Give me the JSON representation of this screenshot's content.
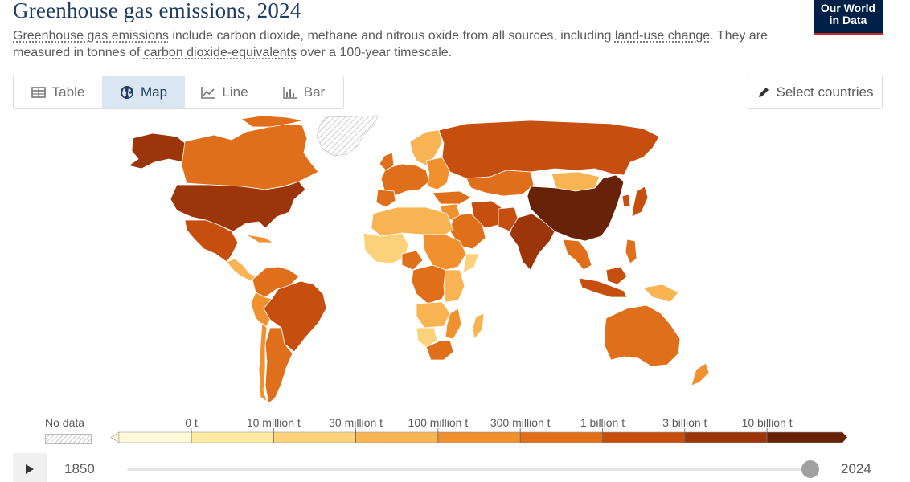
{
  "header": {
    "title": "Greenhouse gas emissions, 2024",
    "subtitle_parts": [
      "Greenhouse gas emissions",
      " include carbon dioxide, methane and nitrous oxide from all sources, including ",
      "land-use change",
      ". They are measured in tonnes of ",
      "carbon dioxide-equivalents",
      " over a 100-year timescale."
    ],
    "logo_line1": "Our World",
    "logo_line2": "in Data"
  },
  "tabs": [
    {
      "label": "Table",
      "icon": "table-icon",
      "selected": false
    },
    {
      "label": "Map",
      "icon": "globe-icon",
      "selected": true
    },
    {
      "label": "Line",
      "icon": "line-chart-icon",
      "selected": false
    },
    {
      "label": "Bar",
      "icon": "bar-chart-icon",
      "selected": false
    }
  ],
  "select_countries": {
    "label": "Select countries",
    "icon": "pencil-icon"
  },
  "legend": {
    "no_data_label": "No data",
    "bins": [
      "0 t",
      "10 million t",
      "30 million t",
      "100 million t",
      "300 million t",
      "1 billion t",
      "3 billion t",
      "10 billion t"
    ],
    "colors": [
      "#fff8d9",
      "#fde9a2",
      "#fbd27a",
      "#f8b353",
      "#f0902f",
      "#e06f1b",
      "#c64f0f",
      "#9c3509",
      "#672207"
    ]
  },
  "timeline": {
    "start_year": "1850",
    "end_year": "2024",
    "current_fraction": 1.0
  },
  "map_colors": {
    "ocean": "#ffffff",
    "border": "#ffffff",
    "no_data_stroke": "#c8c8c8"
  }
}
